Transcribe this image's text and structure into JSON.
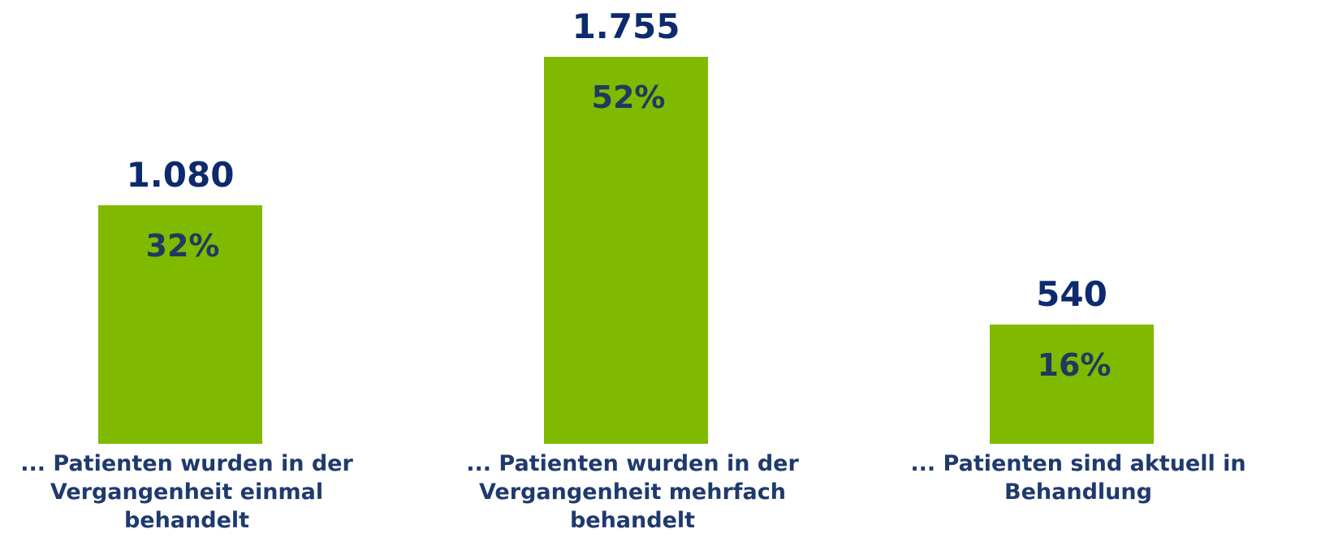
{
  "chart_data": {
    "type": "bar",
    "categories": [
      "... Patienten wurden in der Vergangenheit einmal behandelt",
      "... Patienten wurden in der Vergangenheit mehrfach behandelt",
      "... Patienten sind aktuell in Behandlung"
    ],
    "values": [
      1080,
      1755,
      540
    ],
    "value_labels": [
      "1.080",
      "1.755",
      "540"
    ],
    "percentages": [
      32,
      52,
      16
    ],
    "percentage_labels": [
      "32%",
      "52%",
      "16%"
    ],
    "color": "#7fba00"
  }
}
